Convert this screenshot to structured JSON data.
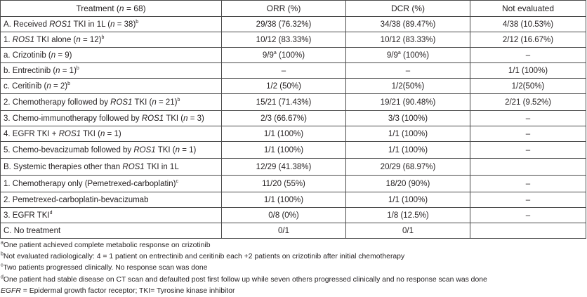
{
  "table": {
    "headers": {
      "treatment_pre": "Treatment (",
      "treatment_n": "n",
      "treatment_post": " = 68)",
      "orr": "ORR (%)",
      "dcr": "DCR (%)",
      "not_evaluated": "Not evaluated"
    },
    "rows": [
      {
        "pre": "A. Received ",
        "it": "ROS1",
        "mid": " TKI in 1L (",
        "n": "n",
        "post": " = 38)",
        "sup": "b",
        "orr": "29/38 (76.32%)",
        "dcr": "34/38 (89.47%)",
        "ne": "4/38 (10.53%)"
      },
      {
        "pre": "1. ",
        "it": "ROS1",
        "mid": " TKI alone (",
        "n": "n",
        "post": " = 12)",
        "sup": "b",
        "orr": "10/12 (83.33%)",
        "dcr": "10/12 (83.33%)",
        "ne": "2/12 (16.67%)"
      },
      {
        "pre": "a. Crizotinib (",
        "it": "",
        "mid": "",
        "n": "n",
        "post": " = 9)",
        "sup": "",
        "orr_pre": "9/9",
        "orr_sup": "a",
        "orr_post": " (100%)",
        "dcr_pre": "9/9",
        "dcr_sup": "a",
        "dcr_post": " (100%)",
        "ne": "–"
      },
      {
        "pre": "b. Entrectinib (",
        "it": "",
        "mid": "",
        "n": "n",
        "post": " = 1)",
        "sup": "b",
        "orr": "–",
        "dcr": "–",
        "ne": "1/1 (100%)"
      },
      {
        "pre": "c. Ceritinib (",
        "it": "",
        "mid": "",
        "n": "n",
        "post": " = 2)",
        "sup": "b",
        "orr": "1/2 (50%)",
        "dcr": "1/2(50%)",
        "ne": "1/2(50%)"
      },
      {
        "pre": "2. Chemotherapy followed by ",
        "it": "ROS1",
        "mid": " TKI (",
        "n": "n",
        "post": " = 21)",
        "sup": "b",
        "orr": "15/21 (71.43%)",
        "dcr": "19/21 (90.48%)",
        "ne": "2/21 (9.52%)"
      },
      {
        "pre": "3. Chemo-immunotherapy followed by ",
        "it": "ROS1",
        "mid": " TKI (",
        "n": "n",
        "post": " = 3)",
        "sup": "",
        "orr": "2/3 (66.67%)",
        "dcr": "3/3 (100%)",
        "ne": "–"
      },
      {
        "pre": "4. EGFR TKI + ",
        "it": "ROS1",
        "mid": " TKI (",
        "n": "n",
        "post": " = 1)",
        "sup": "",
        "orr": "1/1 (100%)",
        "dcr": "1/1 (100%)",
        "ne": "–"
      },
      {
        "pre": "5. Chemo-bevacizumab followed by ",
        "it": "ROS1",
        "mid": " TKI (",
        "n": "n",
        "post": " = 1)",
        "sup": "",
        "orr": "1/1 (100%)",
        "dcr": "1/1 (100%)",
        "ne": "–"
      },
      {
        "pre": "B. Systemic therapies other than ",
        "it": "ROS1",
        "mid": " TKI in 1L",
        "n": "",
        "post": "",
        "sup": "",
        "orr": "12/29 (41.38%)",
        "dcr": "20/29 (68.97%)",
        "ne": ""
      },
      {
        "pre": "1. Chemotherapy only (Pemetrexed-carboplatin)",
        "it": "",
        "mid": "",
        "n": "",
        "post": "",
        "sup": "c",
        "orr": "11/20 (55%)",
        "dcr": "18/20 (90%)",
        "ne": "–"
      },
      {
        "pre": "2. Pemetrexed-carboplatin-bevacizumab",
        "it": "",
        "mid": "",
        "n": "",
        "post": "",
        "sup": "",
        "orr": "1/1 (100%)",
        "dcr": "1/1 (100%)",
        "ne": "–"
      },
      {
        "pre": "3. EGFR TKI",
        "it": "",
        "mid": "",
        "n": "",
        "post": "",
        "sup": "d",
        "orr": "0/8 (0%)",
        "dcr": "1/8 (12.5%)",
        "ne": "–"
      },
      {
        "pre": "C. No treatment",
        "it": "",
        "mid": "",
        "n": "",
        "post": "",
        "sup": "",
        "orr": "0/1",
        "dcr": "0/1",
        "ne": ""
      }
    ]
  },
  "footnotes": {
    "a": {
      "mark": "a",
      "text": "One patient achieved complete metabolic response on crizotinib"
    },
    "b": {
      "mark": "b",
      "text": "Not evaluated radiologically: 4 = 1 patient on entrectinib and ceritinib each +2 patients on crizotinib after initial chemotherapy"
    },
    "c": {
      "mark": "c",
      "text": "Two patients progressed clinically. No response scan was done"
    },
    "d": {
      "mark": "d",
      "text": "One patient had stable disease on CT scan and defaulted post first follow up while seven others progressed clinically and no response scan was done"
    },
    "abbrev": {
      "egfr": "EGFR",
      "rest": " = Epidermal growth factor receptor; TKI= Tyrosine kinase inhibitor"
    }
  }
}
